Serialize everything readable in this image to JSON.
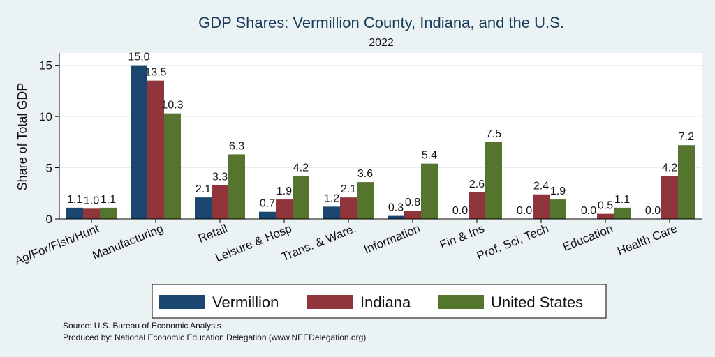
{
  "chart_data": {
    "type": "bar",
    "title": "GDP Shares: Vermillion County, Indiana, and the U.S.",
    "subtitle": "2022",
    "ylabel": "Share of Total GDP",
    "xlabel": "",
    "ylim": [
      0,
      16.2
    ],
    "yticks": [
      0,
      5,
      10,
      15
    ],
    "grid": true,
    "legend_position": "bottom",
    "categories": [
      "Ag/For/Fish/Hunt",
      "Manufacturing",
      "Retail",
      "Leisure & Hosp",
      "Trans. & Ware.",
      "Information",
      "Fin & Ins",
      "Prof, Sci, Tech",
      "Education",
      "Health Care"
    ],
    "series": [
      {
        "name": "Vermillion",
        "color": "#1a476f",
        "values": [
          1.1,
          15.0,
          2.1,
          0.7,
          1.2,
          0.3,
          0.0,
          0.0,
          0.0,
          0.0
        ],
        "labels": [
          "1.1",
          "15.0",
          "2.1",
          "0.7",
          "1.2",
          "0.3",
          "0.0",
          "0.0",
          "0.0",
          "0.0"
        ]
      },
      {
        "name": "Indiana",
        "color": "#90353b",
        "values": [
          1.0,
          13.5,
          3.3,
          1.9,
          2.1,
          0.8,
          2.6,
          2.4,
          0.5,
          4.2
        ],
        "labels": [
          "1.0",
          "13.5",
          "3.3",
          "1.9",
          "2.1",
          "0.8",
          "2.6",
          "2.4",
          "0.5",
          "4.2"
        ]
      },
      {
        "name": "United States",
        "color": "#55752f",
        "values": [
          1.1,
          10.3,
          6.3,
          4.2,
          3.6,
          5.4,
          7.5,
          1.9,
          1.1,
          7.2
        ],
        "labels": [
          "1.1",
          "10.3",
          "6.3",
          "4.2",
          "3.6",
          "5.4",
          "7.5",
          "1.9",
          "1.1",
          "7.2"
        ]
      }
    ],
    "notes": [
      "Source: U.S. Bureau of Economic Analysis",
      "Produced by: National Economic Education Delegation (www.NEEDelegation.org)"
    ]
  }
}
